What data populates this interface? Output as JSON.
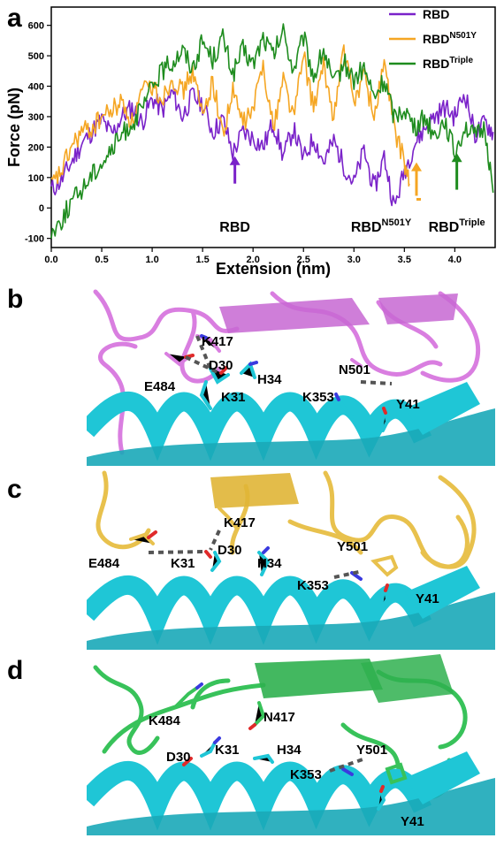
{
  "panels": {
    "a": "a",
    "b": "b",
    "c": "c",
    "d": "d"
  },
  "chart_data": {
    "type": "line",
    "xlabel": "Extension (nm)",
    "ylabel": "Force (pN)",
    "xlim": [
      0,
      4.4
    ],
    "ylim": [
      -130,
      660
    ],
    "xticks": [
      0.0,
      0.5,
      1.0,
      1.5,
      2.0,
      2.5,
      3.0,
      3.5,
      4.0
    ],
    "xtick_labels": [
      "0.0",
      "0.5",
      "1.0",
      "1.5",
      "2.0",
      "2.5",
      "3.0",
      "3.5",
      "4.0"
    ],
    "yticks": [
      -100,
      0,
      100,
      200,
      300,
      400,
      500,
      600
    ],
    "ytick_labels": [
      "-100",
      "0",
      "100",
      "200",
      "300",
      "400",
      "500",
      "600"
    ],
    "legend_position": "top-right",
    "series": [
      {
        "name": "RBD",
        "sup": "",
        "color": "#7a22c9",
        "x": [
          0.0,
          0.1,
          0.2,
          0.3,
          0.4,
          0.5,
          0.6,
          0.7,
          0.8,
          0.9,
          1.0,
          1.1,
          1.2,
          1.3,
          1.4,
          1.5,
          1.6,
          1.7,
          1.8,
          1.9,
          2.0,
          2.1,
          2.2,
          2.3,
          2.4,
          2.5,
          2.6,
          2.7,
          2.8,
          2.9,
          3.0,
          3.1,
          3.2,
          3.3,
          3.4,
          3.5,
          3.6,
          3.7,
          3.8,
          3.9,
          4.0,
          4.1,
          4.2,
          4.3,
          4.38
        ],
        "y": [
          60,
          90,
          150,
          210,
          250,
          290,
          240,
          300,
          330,
          280,
          360,
          320,
          380,
          300,
          370,
          340,
          250,
          290,
          180,
          250,
          230,
          200,
          280,
          170,
          260,
          160,
          230,
          150,
          220,
          140,
          80,
          190,
          60,
          170,
          0,
          120,
          210,
          260,
          300,
          330,
          300,
          380,
          240,
          280,
          250
        ]
      },
      {
        "name": "RBD",
        "sup": "N501Y",
        "color": "#f5a623",
        "x": [
          0.0,
          0.1,
          0.2,
          0.3,
          0.4,
          0.5,
          0.6,
          0.7,
          0.8,
          0.9,
          1.0,
          1.1,
          1.2,
          1.3,
          1.4,
          1.5,
          1.6,
          1.7,
          1.8,
          1.9,
          2.0,
          2.1,
          2.2,
          2.3,
          2.4,
          2.5,
          2.6,
          2.7,
          2.8,
          2.9,
          3.0,
          3.1,
          3.2,
          3.3,
          3.4,
          3.5,
          3.55
        ],
        "y": [
          70,
          120,
          200,
          250,
          260,
          300,
          320,
          350,
          280,
          380,
          400,
          360,
          430,
          380,
          450,
          300,
          420,
          240,
          380,
          280,
          320,
          480,
          260,
          430,
          300,
          500,
          330,
          460,
          300,
          520,
          350,
          440,
          300,
          480,
          260,
          150,
          80
        ]
      },
      {
        "name": "RBD",
        "sup": "Triple",
        "color": "#1e8c1e",
        "x": [
          0.0,
          0.1,
          0.2,
          0.3,
          0.4,
          0.5,
          0.6,
          0.7,
          0.8,
          0.9,
          1.0,
          1.1,
          1.2,
          1.3,
          1.4,
          1.5,
          1.6,
          1.7,
          1.8,
          1.9,
          2.0,
          2.1,
          2.2,
          2.3,
          2.4,
          2.5,
          2.6,
          2.7,
          2.8,
          2.9,
          3.0,
          3.1,
          3.2,
          3.3,
          3.4,
          3.5,
          3.6,
          3.7,
          3.8,
          3.9,
          4.0,
          4.1,
          4.2,
          4.3,
          4.38
        ],
        "y": [
          -80,
          -40,
          20,
          60,
          110,
          150,
          190,
          240,
          280,
          320,
          400,
          450,
          480,
          520,
          460,
          550,
          490,
          560,
          440,
          520,
          470,
          560,
          500,
          580,
          450,
          560,
          430,
          520,
          400,
          480,
          420,
          460,
          360,
          420,
          300,
          330,
          260,
          300,
          240,
          290,
          180,
          270,
          230,
          260,
          50
        ]
      }
    ],
    "annotations": [
      {
        "label": "RBD",
        "sup": "",
        "x": 1.82,
        "arrow_top": 170,
        "arrow_bottom": 80,
        "color": "#7a22c9"
      },
      {
        "label": "RBD",
        "sup": "N501Y",
        "x": 3.62,
        "arrow_top": 150,
        "arrow_bottom": 40,
        "color": "#f5a623"
      },
      {
        "label": "RBD",
        "sup": "Triple",
        "x": 4.02,
        "arrow_top": 180,
        "arrow_bottom": 60,
        "color": "#1e8c1e"
      }
    ]
  },
  "structures": {
    "b": {
      "residues": [
        "K417",
        "D30",
        "E484",
        "K31",
        "H34",
        "N501",
        "K353",
        "Y41"
      ]
    },
    "c": {
      "residues": [
        "K417",
        "D30",
        "E484",
        "K31",
        "H34",
        "Y501",
        "K353",
        "Y41"
      ]
    },
    "d": {
      "residues": [
        "K484",
        "N417",
        "D30",
        "K31",
        "H34",
        "Y501",
        "K353",
        "Y41"
      ]
    }
  },
  "colors": {
    "ace2": "#1fc6d6",
    "rbd_wt": "#d97ee0",
    "rbd_n501y": "#e8c14d",
    "rbd_triple": "#38c25a"
  }
}
